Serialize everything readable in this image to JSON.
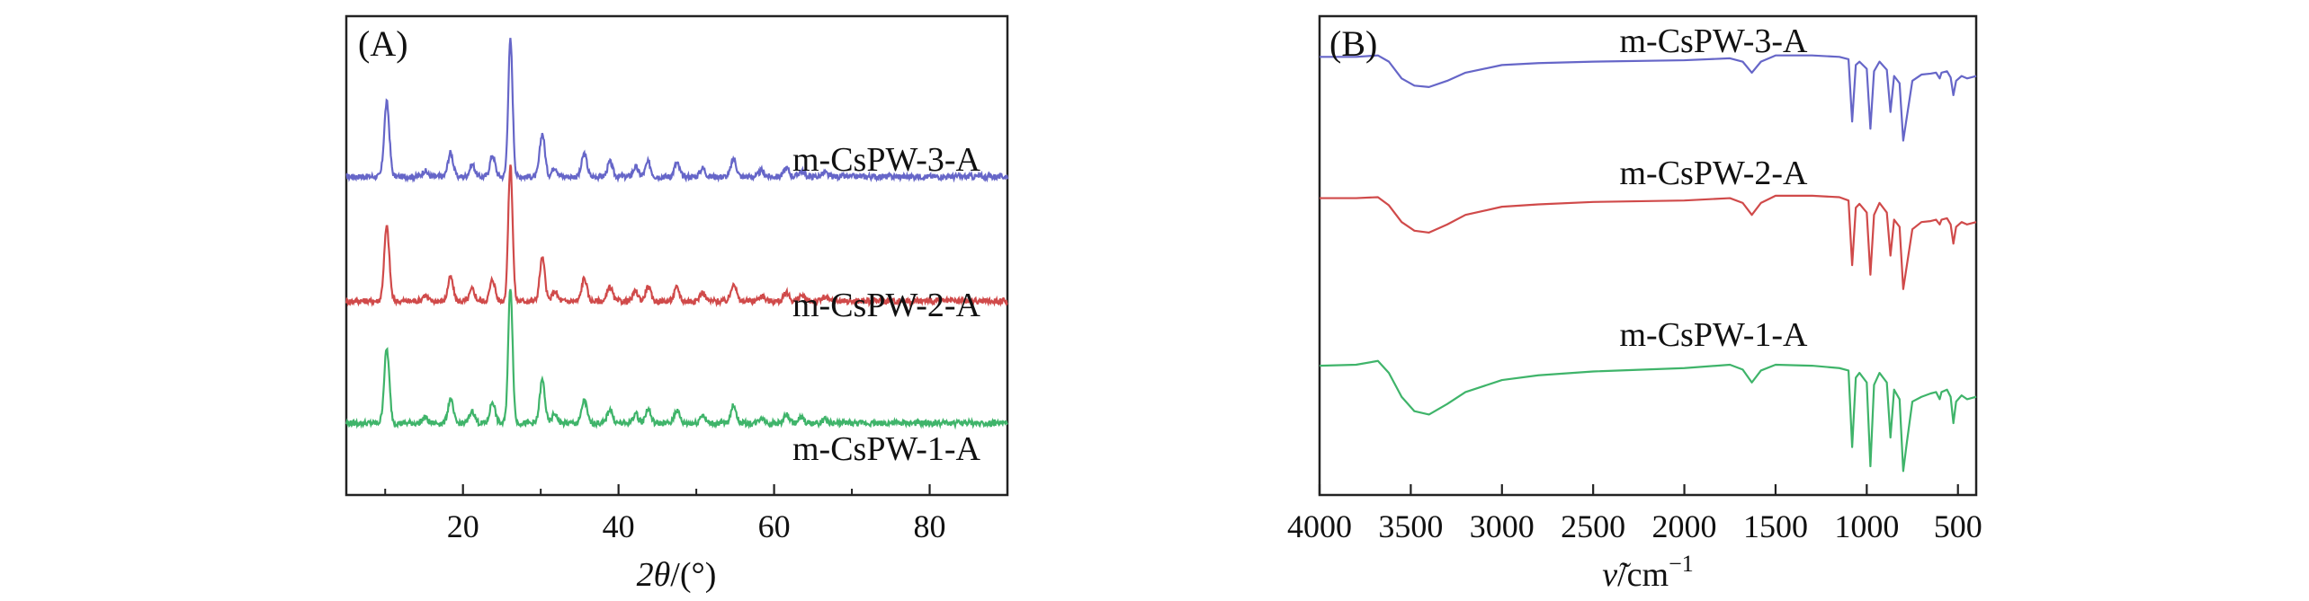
{
  "chart_data": [
    {
      "type": "line",
      "panel_label": "(A)",
      "xlabel_symbol": "2θ",
      "xlabel_unit": "/(°)",
      "ylabel": "",
      "xlim": [
        5,
        90
      ],
      "ylim": [
        0,
        1
      ],
      "x_ticks": [
        20,
        40,
        60,
        80
      ],
      "y_ticks_shown": false,
      "grid": false,
      "colors": {
        "m-CsPW-3-A": "#6666c8",
        "m-CsPW-2-A": "#d04a4a",
        "m-CsPW-1-A": "#3fb46a"
      },
      "series": [
        {
          "name": "m-CsPW-3-A",
          "baseline": 0.665,
          "noise": 0.006,
          "peaks": [
            [
              10.2,
              0.155
            ],
            [
              15.1,
              0.012
            ],
            [
              18.4,
              0.05
            ],
            [
              21.2,
              0.025
            ],
            [
              23.8,
              0.045
            ],
            [
              26.1,
              0.285
            ],
            [
              30.2,
              0.09
            ],
            [
              31.8,
              0.02
            ],
            [
              35.6,
              0.048
            ],
            [
              38.9,
              0.03
            ],
            [
              42.2,
              0.02
            ],
            [
              43.8,
              0.03
            ],
            [
              47.5,
              0.028
            ],
            [
              50.8,
              0.018
            ],
            [
              54.8,
              0.038
            ],
            [
              58.4,
              0.012
            ],
            [
              61.6,
              0.018
            ],
            [
              63.5,
              0.012
            ],
            [
              66.5,
              0.008
            ]
          ]
        },
        {
          "name": "m-CsPW-2-A",
          "baseline": 0.405,
          "noise": 0.006,
          "peaks": [
            [
              10.2,
              0.155
            ],
            [
              15.1,
              0.012
            ],
            [
              18.4,
              0.05
            ],
            [
              21.2,
              0.025
            ],
            [
              23.8,
              0.045
            ],
            [
              26.1,
              0.285
            ],
            [
              30.2,
              0.09
            ],
            [
              31.8,
              0.02
            ],
            [
              35.6,
              0.048
            ],
            [
              38.9,
              0.03
            ],
            [
              42.2,
              0.02
            ],
            [
              43.8,
              0.03
            ],
            [
              47.5,
              0.028
            ],
            [
              50.8,
              0.018
            ],
            [
              54.8,
              0.038
            ],
            [
              58.4,
              0.012
            ],
            [
              61.6,
              0.018
            ],
            [
              63.5,
              0.012
            ],
            [
              66.5,
              0.008
            ]
          ]
        },
        {
          "name": "m-CsPW-1-A",
          "baseline": 0.15,
          "noise": 0.006,
          "peaks": [
            [
              10.2,
              0.155
            ],
            [
              15.1,
              0.012
            ],
            [
              18.4,
              0.05
            ],
            [
              21.2,
              0.025
            ],
            [
              23.8,
              0.045
            ],
            [
              26.1,
              0.285
            ],
            [
              30.2,
              0.09
            ],
            [
              31.8,
              0.02
            ],
            [
              35.6,
              0.048
            ],
            [
              38.9,
              0.03
            ],
            [
              42.2,
              0.02
            ],
            [
              43.8,
              0.03
            ],
            [
              47.5,
              0.028
            ],
            [
              50.8,
              0.018
            ],
            [
              54.8,
              0.038
            ],
            [
              58.4,
              0.012
            ],
            [
              61.6,
              0.018
            ],
            [
              63.5,
              0.012
            ],
            [
              66.5,
              0.008
            ]
          ]
        }
      ]
    },
    {
      "type": "line",
      "panel_label": "(B)",
      "xlabel_symbol": "ν̃",
      "xlabel_unit": "/cm",
      "xlabel_exp": "−1",
      "ylabel": "",
      "xlim": [
        4000,
        400
      ],
      "x_reversed": true,
      "ylim": [
        0,
        1
      ],
      "x_ticks": [
        4000,
        3500,
        3000,
        2500,
        2000,
        1500,
        1000,
        500
      ],
      "y_ticks_shown": false,
      "grid": false,
      "colors": {
        "m-CsPW-3-A": "#6666c8",
        "m-CsPW-2-A": "#d04a4a",
        "m-CsPW-1-A": "#3fb46a"
      },
      "series": [
        {
          "name": "m-CsPW-3-A",
          "points": [
            [
              4000,
              0.915
            ],
            [
              3800,
              0.915
            ],
            [
              3680,
              0.918
            ],
            [
              3620,
              0.905
            ],
            [
              3550,
              0.87
            ],
            [
              3480,
              0.855
            ],
            [
              3400,
              0.852
            ],
            [
              3300,
              0.865
            ],
            [
              3200,
              0.882
            ],
            [
              3000,
              0.898
            ],
            [
              2800,
              0.902
            ],
            [
              2500,
              0.905
            ],
            [
              2000,
              0.908
            ],
            [
              1750,
              0.912
            ],
            [
              1680,
              0.905
            ],
            [
              1630,
              0.882
            ],
            [
              1580,
              0.905
            ],
            [
              1500,
              0.918
            ],
            [
              1300,
              0.918
            ],
            [
              1150,
              0.915
            ],
            [
              1100,
              0.91
            ],
            [
              1080,
              0.78
            ],
            [
              1060,
              0.898
            ],
            [
              1040,
              0.905
            ],
            [
              1000,
              0.89
            ],
            [
              980,
              0.765
            ],
            [
              960,
              0.885
            ],
            [
              930,
              0.905
            ],
            [
              890,
              0.888
            ],
            [
              870,
              0.8
            ],
            [
              850,
              0.875
            ],
            [
              820,
              0.86
            ],
            [
              800,
              0.74
            ],
            [
              780,
              0.79
            ],
            [
              750,
              0.865
            ],
            [
              700,
              0.878
            ],
            [
              650,
              0.88
            ],
            [
              620,
              0.882
            ],
            [
              600,
              0.87
            ],
            [
              590,
              0.882
            ],
            [
              560,
              0.885
            ],
            [
              540,
              0.872
            ],
            [
              525,
              0.835
            ],
            [
              510,
              0.865
            ],
            [
              480,
              0.875
            ],
            [
              450,
              0.87
            ],
            [
              400,
              0.875
            ]
          ]
        },
        {
          "name": "m-CsPW-2-A",
          "points": [
            [
              4000,
              0.62
            ],
            [
              3800,
              0.62
            ],
            [
              3680,
              0.622
            ],
            [
              3620,
              0.605
            ],
            [
              3550,
              0.57
            ],
            [
              3480,
              0.552
            ],
            [
              3400,
              0.548
            ],
            [
              3300,
              0.565
            ],
            [
              3200,
              0.585
            ],
            [
              3000,
              0.602
            ],
            [
              2800,
              0.607
            ],
            [
              2500,
              0.612
            ],
            [
              2000,
              0.615
            ],
            [
              1750,
              0.62
            ],
            [
              1680,
              0.61
            ],
            [
              1630,
              0.585
            ],
            [
              1580,
              0.61
            ],
            [
              1500,
              0.625
            ],
            [
              1300,
              0.625
            ],
            [
              1150,
              0.622
            ],
            [
              1100,
              0.615
            ],
            [
              1080,
              0.48
            ],
            [
              1060,
              0.6
            ],
            [
              1040,
              0.608
            ],
            [
              1000,
              0.59
            ],
            [
              980,
              0.46
            ],
            [
              960,
              0.585
            ],
            [
              930,
              0.61
            ],
            [
              890,
              0.59
            ],
            [
              870,
              0.5
            ],
            [
              850,
              0.575
            ],
            [
              820,
              0.56
            ],
            [
              800,
              0.43
            ],
            [
              780,
              0.48
            ],
            [
              750,
              0.555
            ],
            [
              700,
              0.57
            ],
            [
              650,
              0.572
            ],
            [
              620,
              0.575
            ],
            [
              600,
              0.565
            ],
            [
              590,
              0.575
            ],
            [
              560,
              0.578
            ],
            [
              540,
              0.565
            ],
            [
              525,
              0.525
            ],
            [
              510,
              0.56
            ],
            [
              480,
              0.57
            ],
            [
              450,
              0.565
            ],
            [
              400,
              0.57
            ]
          ]
        },
        {
          "name": "m-CsPW-1-A",
          "points": [
            [
              4000,
              0.27
            ],
            [
              3800,
              0.272
            ],
            [
              3680,
              0.28
            ],
            [
              3620,
              0.255
            ],
            [
              3550,
              0.205
            ],
            [
              3480,
              0.175
            ],
            [
              3400,
              0.168
            ],
            [
              3300,
              0.19
            ],
            [
              3200,
              0.215
            ],
            [
              3000,
              0.24
            ],
            [
              2800,
              0.25
            ],
            [
              2500,
              0.258
            ],
            [
              2000,
              0.265
            ],
            [
              1750,
              0.272
            ],
            [
              1680,
              0.262
            ],
            [
              1630,
              0.235
            ],
            [
              1580,
              0.26
            ],
            [
              1500,
              0.272
            ],
            [
              1300,
              0.27
            ],
            [
              1150,
              0.265
            ],
            [
              1100,
              0.26
            ],
            [
              1080,
              0.1
            ],
            [
              1060,
              0.245
            ],
            [
              1040,
              0.255
            ],
            [
              1000,
              0.235
            ],
            [
              980,
              0.06
            ],
            [
              960,
              0.23
            ],
            [
              930,
              0.255
            ],
            [
              890,
              0.235
            ],
            [
              870,
              0.12
            ],
            [
              850,
              0.22
            ],
            [
              820,
              0.2
            ],
            [
              800,
              0.05
            ],
            [
              780,
              0.11
            ],
            [
              750,
              0.195
            ],
            [
              700,
              0.205
            ],
            [
              650,
              0.212
            ],
            [
              620,
              0.215
            ],
            [
              600,
              0.2
            ],
            [
              590,
              0.215
            ],
            [
              560,
              0.22
            ],
            [
              540,
              0.205
            ],
            [
              525,
              0.15
            ],
            [
              510,
              0.195
            ],
            [
              480,
              0.208
            ],
            [
              450,
              0.2
            ],
            [
              400,
              0.205
            ]
          ]
        }
      ]
    }
  ]
}
